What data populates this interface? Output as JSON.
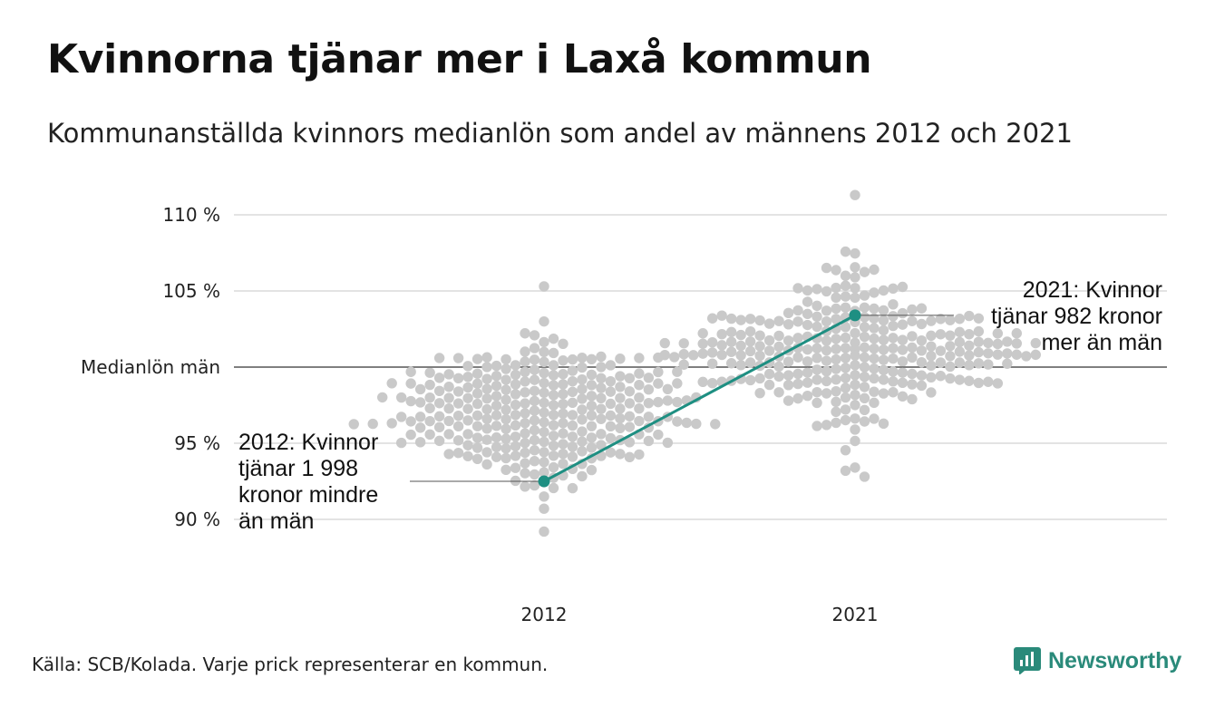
{
  "title": "Kvinnorna tjänar mer i Laxå kommun",
  "subtitle": "Kommunanställda kvinnors medianlön som andel av männens 2012 och 2021",
  "source": "Källa: SCB/Kolada. Varje prick representerar en kommun.",
  "brand": {
    "name": "Newsworthy",
    "color": "#2a8a7a"
  },
  "chart_data": {
    "type": "scatter",
    "categories": [
      "2012",
      "2021"
    ],
    "y_ticks": [
      {
        "value": 110,
        "label": "110 %"
      },
      {
        "value": 105,
        "label": "105 %"
      },
      {
        "value": 100,
        "label": "Medianlön män"
      },
      {
        "value": 95,
        "label": "95 %"
      },
      {
        "value": 90,
        "label": "90 %"
      }
    ],
    "ylim": [
      86,
      112
    ],
    "grid": true,
    "reference_line": 100,
    "dot_color": "#c9c9c9",
    "highlight_color": "#1e8f82",
    "distributions": [
      {
        "category": "2012",
        "median": 97.0,
        "spread": 2.4,
        "count": 290,
        "min": 89.2,
        "max": 105.3
      },
      {
        "category": "2021",
        "median": 101.2,
        "spread": 2.3,
        "count": 290,
        "min": 92.8,
        "max": 111.3
      }
    ],
    "highlight": {
      "name": "Laxå",
      "values": [
        {
          "category": "2012",
          "value": 92.5
        },
        {
          "category": "2021",
          "value": 103.4
        }
      ]
    },
    "annotations": [
      {
        "category": "2012",
        "lines": [
          "2012: Kvinnor",
          "tjänar 1 998",
          "kronor mindre",
          "än män"
        ]
      },
      {
        "category": "2021",
        "lines": [
          "2021: Kvinnor",
          "tjänar 982 kronor",
          "mer än män"
        ]
      }
    ]
  }
}
